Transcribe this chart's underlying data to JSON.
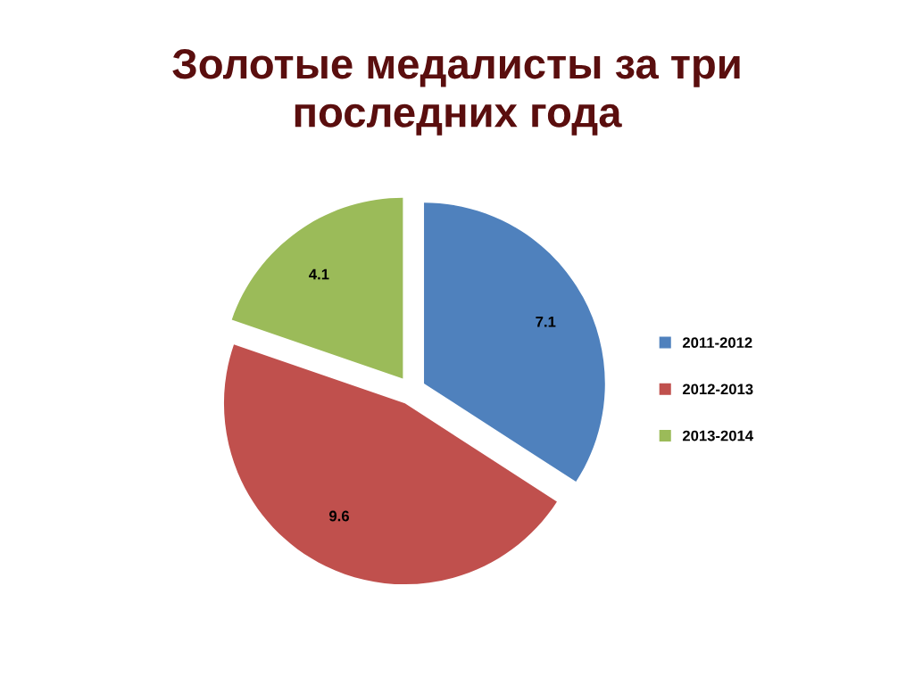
{
  "chart_data": {
    "type": "pie",
    "title": "Золотые медалисты за три\nпоследних года",
    "categories": [
      "2011-2012",
      "2012-2013",
      "2013-2014"
    ],
    "values": [
      7.1,
      9.6,
      4.1
    ],
    "colors": [
      "#4f81bd",
      "#c0504d",
      "#9bbb59"
    ],
    "data_labels": true,
    "legend": "right"
  }
}
